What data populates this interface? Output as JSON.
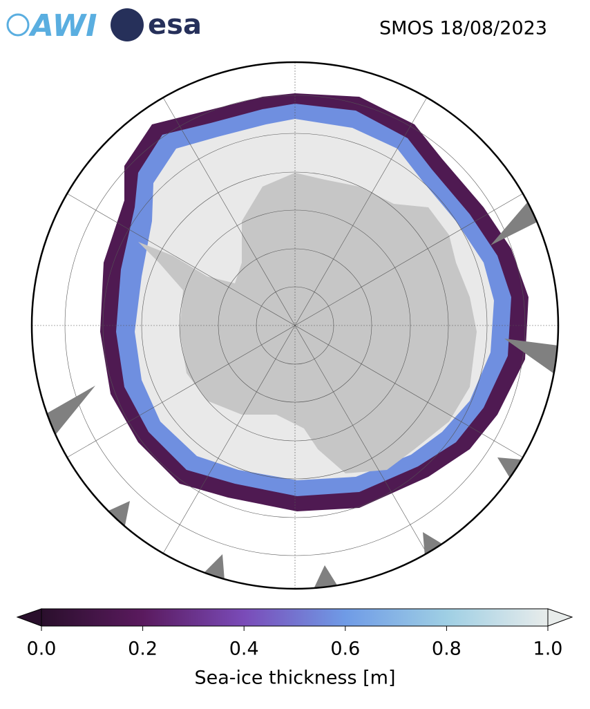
{
  "header": {
    "logos": [
      "AWI",
      "esa"
    ],
    "title": "SMOS 18/08/2023"
  },
  "colorbar": {
    "label": "Sea-ice thickness [m]",
    "lim": [
      0,
      1
    ],
    "ticks": [
      {
        "value": 0,
        "label": "0.0"
      },
      {
        "value": 0.2,
        "label": "0.2"
      },
      {
        "value": 0.4,
        "label": "0.4"
      },
      {
        "value": 0.6,
        "label": "0.6"
      },
      {
        "value": 0.8,
        "label": "0.8"
      },
      {
        "value": 1,
        "label": "1.0"
      }
    ],
    "colors": [
      "#2a0f2c",
      "#5a1a5e",
      "#7a4bb8",
      "#6f9be6",
      "#9fcfe4",
      "#e8eceb"
    ]
  }
}
